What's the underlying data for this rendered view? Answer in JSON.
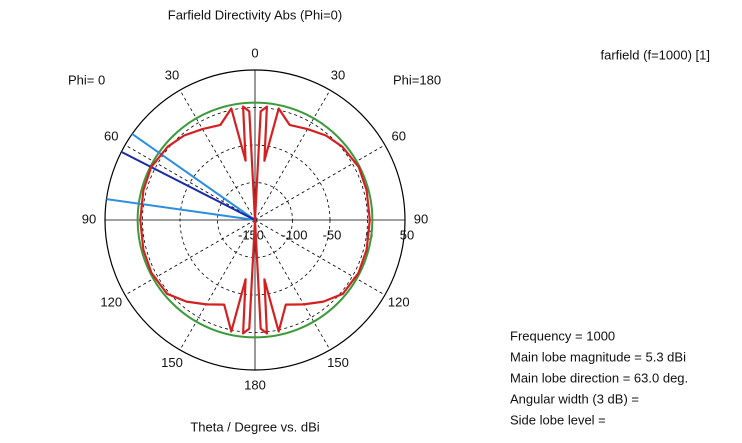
{
  "chart_data": {
    "type": "polar",
    "title": "Farfield Directivity Abs (Phi=0)",
    "left_label": "Phi= 0",
    "right_label": "Phi=180",
    "axis_label": "Theta / Degree vs. dBi",
    "rlim": [
      -150,
      50
    ],
    "rticks": [
      -150,
      -100,
      -50,
      0,
      50
    ],
    "angle_ticks": [
      0,
      30,
      60,
      90,
      120,
      150,
      180,
      {
        "value": 210,
        "label": "150"
      },
      {
        "value": 240,
        "label": "120"
      },
      {
        "value": 270,
        "label": "90"
      },
      {
        "value": 300,
        "label": "60"
      },
      {
        "value": 330,
        "label": "30"
      }
    ],
    "grid": true,
    "legend": "top-right",
    "series": [
      {
        "name": "farfield (f=1000) [1]",
        "color": "#d42020",
        "x": [
          0,
          3,
          6,
          9,
          12,
          20,
          30,
          40,
          50,
          63,
          75,
          90,
          105,
          117,
          130,
          140,
          150,
          160,
          168,
          171,
          174,
          177,
          180,
          183,
          186,
          189,
          192,
          200,
          210,
          220,
          230,
          243,
          255,
          270,
          285,
          297,
          310,
          320,
          330,
          340,
          348,
          351,
          354,
          357,
          360
        ],
        "values": [
          -150,
          -5,
          2,
          -70,
          2,
          -15,
          -10,
          -3,
          2,
          5.3,
          4,
          3,
          4,
          5,
          3,
          -8,
          -20,
          -30,
          2,
          -70,
          2,
          -5,
          -150,
          -5,
          2,
          -70,
          2,
          -30,
          -20,
          -8,
          3,
          5,
          4,
          3,
          4,
          5.3,
          2,
          -3,
          -10,
          -15,
          2,
          -70,
          2,
          -5,
          -150
        ]
      }
    ],
    "reference_circle": {
      "value": 6.5,
      "color": "#3c9a3c"
    },
    "main_lobe_angle": 63,
    "main_lobe_color": "#1a2aa8",
    "beam_angles": [
      55,
      82
    ],
    "beam_color": "#2b8fe0",
    "info": [
      "Frequency = 1000",
      "Main lobe magnitude =   5.3 dBi",
      "Main lobe direction =  63.0 deg.",
      "Angular width (3 dB) =",
      "Side lobe level ="
    ]
  }
}
